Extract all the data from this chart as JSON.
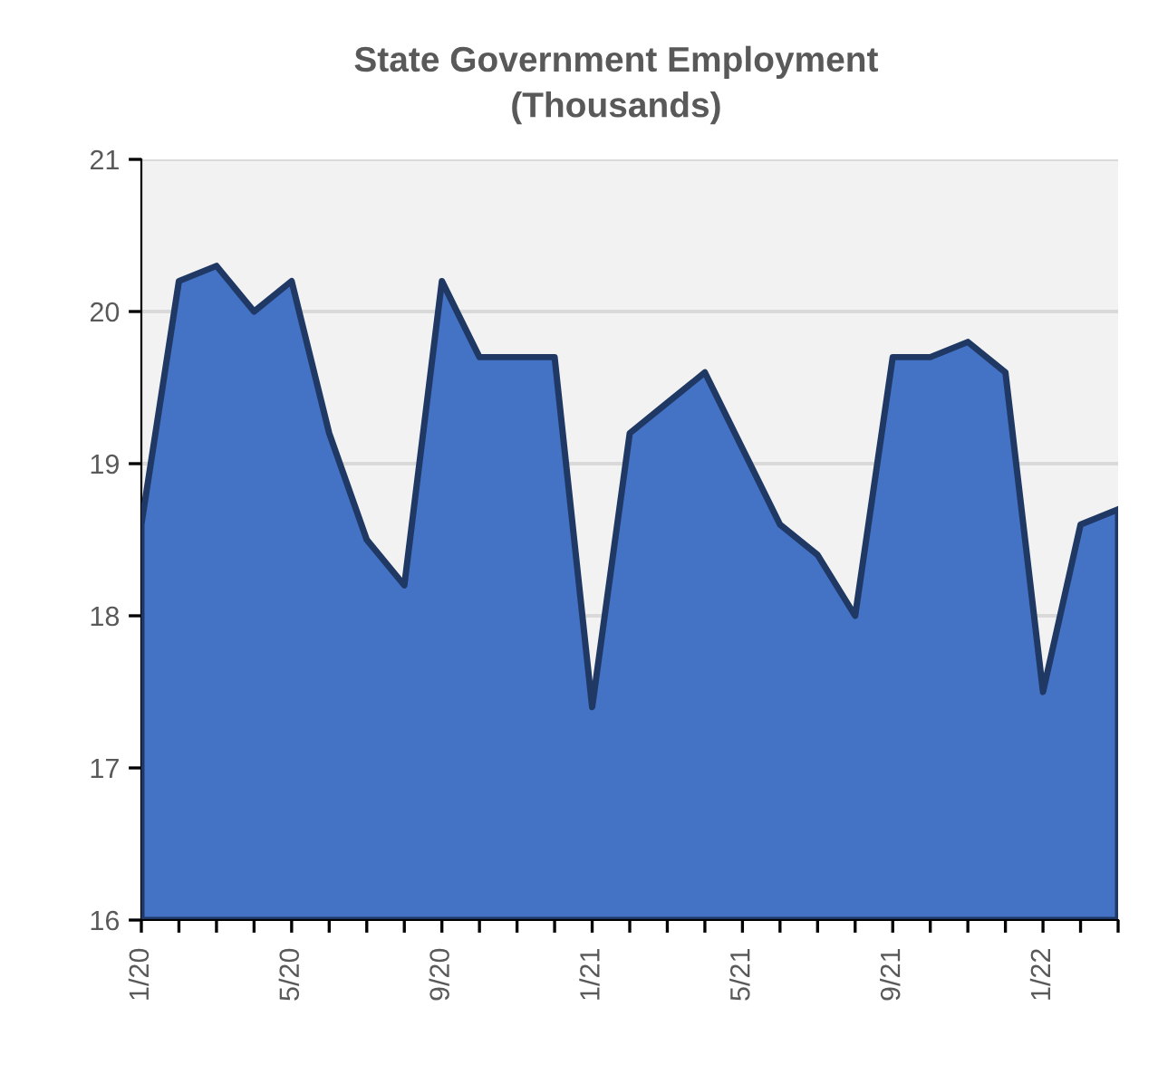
{
  "chart_data": {
    "type": "area",
    "title": "State Government Employment\n(Thousands)",
    "categories": [
      "1/20",
      null,
      null,
      null,
      "5/20",
      null,
      null,
      null,
      "9/20",
      null,
      null,
      null,
      "1/21",
      null,
      null,
      null,
      "5/21",
      null,
      null,
      null,
      "9/21",
      null,
      null,
      null,
      "1/22",
      null,
      null
    ],
    "series": [
      {
        "color": "#4472c4",
        "values": [
          18.6,
          20.2,
          20.3,
          20.0,
          20.2,
          19.2,
          18.5,
          18.2,
          20.2,
          19.7,
          19.7,
          19.7,
          17.4,
          19.2,
          19.4,
          19.6,
          19.1,
          18.6,
          18.4,
          18.0,
          19.7,
          19.7,
          19.8,
          19.6,
          17.5,
          18.6,
          18.7
        ]
      }
    ],
    "ylim": [
      16,
      21
    ],
    "yticks": [
      16,
      17,
      18,
      19,
      20,
      21
    ],
    "grid": "y"
  }
}
